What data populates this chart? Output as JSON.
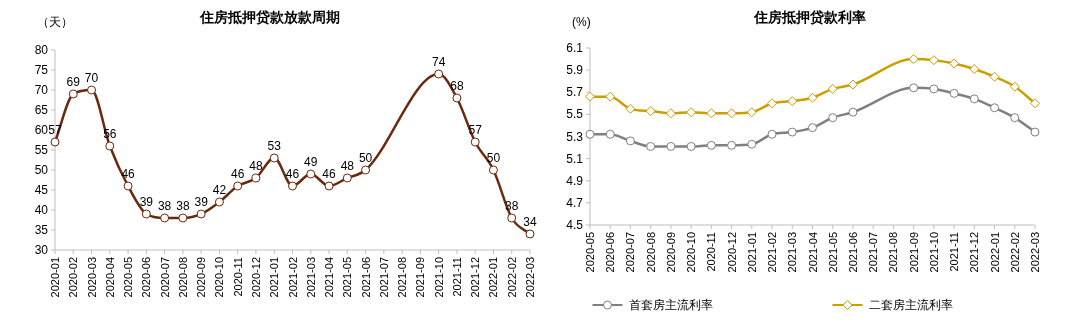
{
  "chart_data": [
    {
      "type": "line",
      "title": "住房抵押贷款放款周期",
      "ylabel": "（天）",
      "categories": [
        "2020-01",
        "2020-02",
        "2020-03",
        "2020-04",
        "2020-05",
        "2020-06",
        "2020-07",
        "2020-08",
        "2020-09",
        "2020-10",
        "2020-11",
        "2020-12",
        "2021-01",
        "2021-02",
        "2021-03",
        "2021-04",
        "2021-05",
        "2021-06",
        "2021-07",
        "2021-08",
        "2021-09",
        "2021-10",
        "2021-11",
        "2021-12",
        "2022-01",
        "2022-02",
        "2022-03"
      ],
      "series": [
        {
          "color": "#6b2a0e",
          "marker": "circle",
          "values": [
            57,
            69,
            70,
            56,
            46,
            39,
            38,
            38,
            39,
            42,
            46,
            48,
            53,
            46,
            49,
            46,
            48,
            50,
            null,
            null,
            null,
            74,
            68,
            57,
            50,
            38,
            34
          ]
        }
      ],
      "ylim": [
        30,
        80
      ],
      "yticks": [
        30,
        35,
        40,
        45,
        50,
        55,
        60,
        65,
        70,
        75,
        80
      ],
      "data_labels": true,
      "legend": false
    },
    {
      "type": "line",
      "title": "住房抵押贷款利率",
      "ylabel": "(%)",
      "categories": [
        "2020-05",
        "2020-06",
        "2020-07",
        "2020-08",
        "2020-09",
        "2020-10",
        "2020-11",
        "2020-12",
        "2021-01",
        "2021-02",
        "2021-03",
        "2021-04",
        "2021-05",
        "2021-06",
        "2021-07",
        "2021-08",
        "2021-09",
        "2021-10",
        "2021-11",
        "2021-12",
        "2022-01",
        "2022-02",
        "2022-03"
      ],
      "series": [
        {
          "name": "首套房主流利率",
          "color": "#808080",
          "marker": "circle",
          "values": [
            5.32,
            5.32,
            5.26,
            5.21,
            5.21,
            5.21,
            5.22,
            5.22,
            5.23,
            5.32,
            5.34,
            5.38,
            5.47,
            5.52,
            null,
            null,
            5.74,
            5.73,
            5.69,
            5.64,
            5.56,
            5.47,
            5.34
          ]
        },
        {
          "name": "二套房主流利率",
          "color": "#c9a000",
          "marker": "diamond",
          "values": [
            5.66,
            5.66,
            5.55,
            5.53,
            5.51,
            5.52,
            5.51,
            5.51,
            5.52,
            5.6,
            5.62,
            5.65,
            5.73,
            5.77,
            null,
            null,
            6.0,
            5.99,
            5.96,
            5.91,
            5.84,
            5.75,
            5.6
          ]
        }
      ],
      "ylim": [
        4.5,
        6.1
      ],
      "yticks": [
        {
          "value": 4.5,
          "label": "4.5"
        },
        {
          "value": 4.7,
          "label": "4.7"
        },
        {
          "value": 4.9,
          "label": "4.9"
        },
        {
          "value": 5.1,
          "label": "5.1"
        },
        {
          "value": 5.3,
          "label": "5.3"
        },
        {
          "value": 5.5,
          "label": "5.5"
        },
        {
          "value": 5.7,
          "label": "5.7"
        },
        {
          "value": 5.9,
          "label": "5.9"
        },
        {
          "value": 6.1,
          "label": "6.1"
        }
      ],
      "legend": "bottom"
    }
  ]
}
